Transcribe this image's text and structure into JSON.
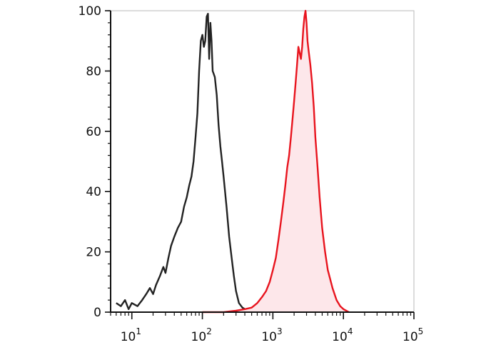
{
  "chart_data": {
    "type": "area",
    "x_scale": "log",
    "xlim": [
      5,
      100000
    ],
    "ylim": [
      0,
      100
    ],
    "grid": false,
    "legend": "none",
    "xticks": [
      {
        "value": 10,
        "base": "10",
        "exp": "1"
      },
      {
        "value": 100,
        "base": "10",
        "exp": "2"
      },
      {
        "value": 1000,
        "base": "10",
        "exp": "3"
      },
      {
        "value": 10000,
        "base": "10",
        "exp": "4"
      },
      {
        "value": 100000,
        "base": "10",
        "exp": "5"
      }
    ],
    "yticks": [
      {
        "value": 0,
        "label": "0"
      },
      {
        "value": 20,
        "label": "20"
      },
      {
        "value": 40,
        "label": "40"
      },
      {
        "value": 60,
        "label": "60"
      },
      {
        "value": 80,
        "label": "80"
      },
      {
        "value": 100,
        "label": "100"
      }
    ],
    "series": [
      {
        "color": "#222222",
        "filled": false,
        "points": [
          [
            6,
            3
          ],
          [
            7,
            2
          ],
          [
            8,
            4
          ],
          [
            9,
            1
          ],
          [
            10,
            3
          ],
          [
            12,
            2
          ],
          [
            14,
            4
          ],
          [
            16,
            6
          ],
          [
            18,
            8
          ],
          [
            20,
            6
          ],
          [
            22,
            9
          ],
          [
            25,
            12
          ],
          [
            28,
            15
          ],
          [
            30,
            13
          ],
          [
            33,
            18
          ],
          [
            36,
            22
          ],
          [
            40,
            25
          ],
          [
            45,
            28
          ],
          [
            50,
            30
          ],
          [
            55,
            35
          ],
          [
            60,
            38
          ],
          [
            65,
            42
          ],
          [
            70,
            45
          ],
          [
            75,
            50
          ],
          [
            80,
            58
          ],
          [
            85,
            66
          ],
          [
            90,
            80
          ],
          [
            95,
            90
          ],
          [
            100,
            92
          ],
          [
            105,
            88
          ],
          [
            110,
            90
          ],
          [
            115,
            98
          ],
          [
            120,
            99
          ],
          [
            125,
            84
          ],
          [
            130,
            96
          ],
          [
            135,
            90
          ],
          [
            140,
            80
          ],
          [
            150,
            78
          ],
          [
            160,
            72
          ],
          [
            170,
            62
          ],
          [
            180,
            55
          ],
          [
            190,
            50
          ],
          [
            200,
            45
          ],
          [
            220,
            35
          ],
          [
            240,
            25
          ],
          [
            260,
            18
          ],
          [
            280,
            12
          ],
          [
            300,
            7
          ],
          [
            330,
            3
          ],
          [
            370,
            1.5
          ],
          [
            400,
            1
          ],
          [
            450,
            0.5
          ],
          [
            500,
            0
          ]
        ]
      },
      {
        "color": "#e8141e",
        "fill": "#fde7ea",
        "filled": true,
        "points": [
          [
            100,
            0
          ],
          [
            200,
            0
          ],
          [
            300,
            0.5
          ],
          [
            400,
            1
          ],
          [
            500,
            1.5
          ],
          [
            600,
            3
          ],
          [
            700,
            5
          ],
          [
            800,
            7
          ],
          [
            900,
            10
          ],
          [
            1000,
            14
          ],
          [
            1100,
            18
          ],
          [
            1200,
            24
          ],
          [
            1300,
            30
          ],
          [
            1400,
            36
          ],
          [
            1500,
            42
          ],
          [
            1600,
            48
          ],
          [
            1700,
            52
          ],
          [
            1800,
            58
          ],
          [
            1900,
            64
          ],
          [
            2000,
            70
          ],
          [
            2100,
            76
          ],
          [
            2200,
            82
          ],
          [
            2300,
            88
          ],
          [
            2400,
            86
          ],
          [
            2500,
            84
          ],
          [
            2600,
            88
          ],
          [
            2700,
            94
          ],
          [
            2800,
            98
          ],
          [
            2900,
            100
          ],
          [
            3000,
            96
          ],
          [
            3100,
            90
          ],
          [
            3200,
            87
          ],
          [
            3400,
            82
          ],
          [
            3600,
            76
          ],
          [
            3800,
            68
          ],
          [
            4000,
            58
          ],
          [
            4300,
            48
          ],
          [
            4600,
            38
          ],
          [
            5000,
            28
          ],
          [
            5500,
            20
          ],
          [
            6000,
            14
          ],
          [
            7000,
            8
          ],
          [
            8000,
            4
          ],
          [
            9000,
            2
          ],
          [
            10000,
            1
          ],
          [
            12000,
            0
          ]
        ]
      }
    ]
  }
}
